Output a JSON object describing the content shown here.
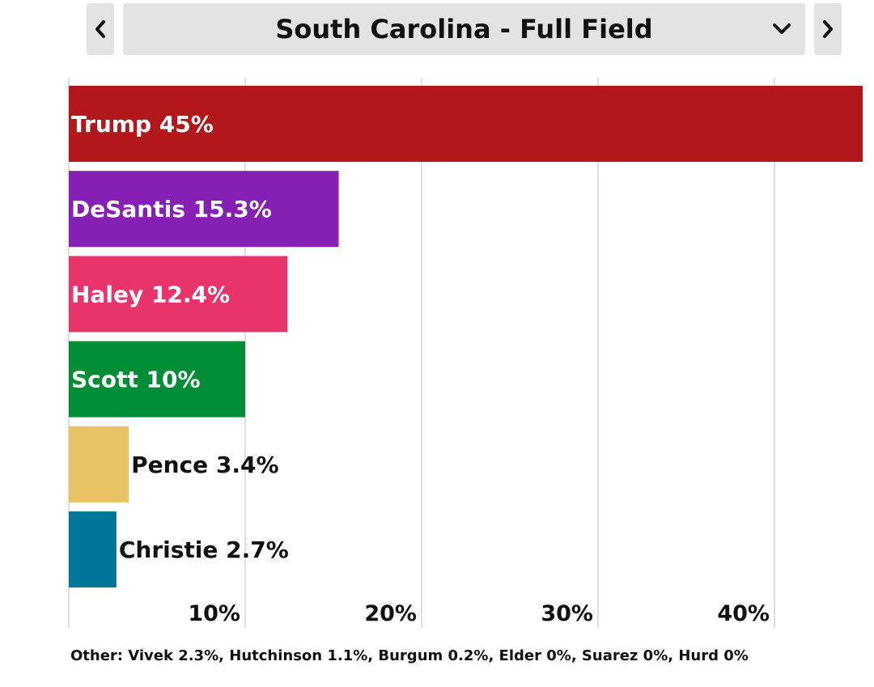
{
  "header": {
    "title": "South Carolina - Full Field",
    "prev_icon": "chevron-left-icon",
    "next_icon": "chevron-right-icon",
    "dropdown_icon": "chevron-down-icon"
  },
  "chart_data": {
    "type": "bar",
    "orientation": "horizontal",
    "categories": [
      "Trump",
      "DeSantis",
      "Haley",
      "Scott",
      "Pence",
      "Christie"
    ],
    "values": [
      45,
      15.3,
      12.4,
      10,
      3.4,
      2.7
    ],
    "labels": [
      "Trump 45%",
      "DeSantis 15.3%",
      "Haley 12.4%",
      "Scott 10%",
      "Pence 3.4%",
      "Christie 2.7%"
    ],
    "colors": [
      "#b2181b",
      "#8620b4",
      "#e8336b",
      "#008d36",
      "#e8c364",
      "#007799"
    ],
    "label_inside": [
      true,
      true,
      true,
      true,
      false,
      false
    ],
    "xlim": [
      0,
      45
    ],
    "xticks": [
      10,
      20,
      30,
      40
    ],
    "xtick_labels": [
      "10%",
      "20%",
      "30%",
      "40%"
    ],
    "grid": true,
    "title": "",
    "xlabel": "",
    "ylabel": ""
  },
  "footnote": "Other: Vivek 2.3%, Hutchinson 1.1%, Burgum 0.2%, Elder 0%, Suarez 0%, Hurd 0%"
}
